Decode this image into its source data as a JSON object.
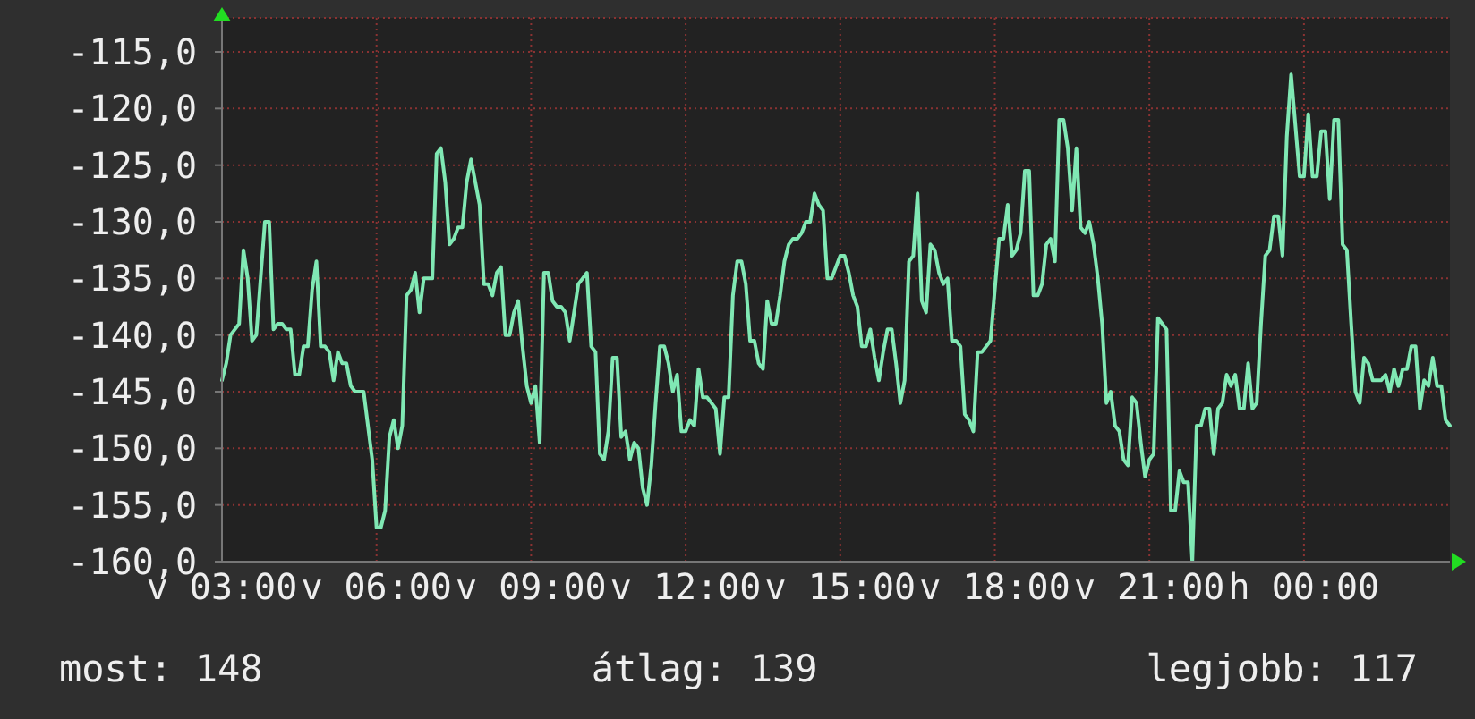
{
  "chart_data": {
    "type": "line",
    "color": "#80e8b4",
    "categories": [
      "v 03:00",
      null,
      null,
      null,
      null,
      null,
      null,
      null,
      null,
      null,
      null,
      null,
      null,
      null,
      null,
      null,
      null,
      null,
      null,
      null,
      null,
      null,
      null,
      null,
      null,
      null,
      null,
      null,
      null,
      null,
      null,
      null,
      null,
      null,
      null,
      null,
      "v 06:00",
      null,
      null,
      null,
      null,
      null,
      null,
      null,
      null,
      null,
      null,
      null,
      null,
      null,
      null,
      null,
      null,
      null,
      null,
      null,
      null,
      null,
      null,
      null,
      null,
      null,
      null,
      null,
      null,
      null,
      null,
      null,
      null,
      null,
      null,
      null,
      "v 09:00",
      null,
      null,
      null,
      null,
      null,
      null,
      null,
      null,
      null,
      null,
      null,
      null,
      null,
      null,
      null,
      null,
      null,
      null,
      null,
      null,
      null,
      null,
      null,
      null,
      null,
      null,
      null,
      null,
      null,
      null,
      null,
      null,
      null,
      null,
      null,
      "v 12:00",
      null,
      null,
      null,
      null,
      null,
      null,
      null,
      null,
      null,
      null,
      null,
      null,
      null,
      null,
      null,
      null,
      null,
      null,
      null,
      null,
      null,
      null,
      null,
      null,
      null,
      null,
      null,
      null,
      null,
      null,
      null,
      null,
      null,
      null,
      null,
      "v 15:00",
      null,
      null,
      null,
      null,
      null,
      null,
      null,
      null,
      null,
      null,
      null,
      null,
      null,
      null,
      null,
      null,
      null,
      null,
      null,
      null,
      null,
      null,
      null,
      null,
      null,
      null,
      null,
      null,
      null,
      null,
      null,
      null,
      null,
      null,
      null,
      "v 18:00",
      null,
      null,
      null,
      null,
      null,
      null,
      null,
      null,
      null,
      null,
      null,
      null,
      null,
      null,
      null,
      null,
      null,
      null,
      null,
      null,
      null,
      null,
      null,
      null,
      null,
      null,
      null,
      null,
      null,
      null,
      null,
      null,
      null,
      null,
      null,
      "v 21:00",
      null,
      null,
      null,
      null,
      null,
      null,
      null,
      null,
      null,
      null,
      null,
      null,
      null,
      null,
      null,
      null,
      null,
      null,
      null,
      null,
      null,
      null,
      null,
      null,
      null,
      null,
      null,
      null,
      null,
      null,
      null,
      null,
      null,
      null,
      null,
      "h 00:00",
      null,
      null,
      null,
      null,
      null,
      null,
      null,
      null,
      null,
      null,
      null,
      null,
      null,
      null,
      null,
      null,
      null,
      null,
      null,
      null,
      null,
      null,
      null,
      null,
      null,
      null,
      null,
      null,
      null,
      null,
      null,
      null,
      null,
      null
    ],
    "values": [
      -144,
      -142.5,
      -140,
      -139.5,
      -139,
      -132.5,
      -135,
      -140.5,
      -140,
      -135,
      -130,
      -130,
      -139.5,
      -139,
      -139,
      -139.5,
      -139.5,
      -143.5,
      -143.5,
      -141,
      -141,
      -136,
      -133.5,
      -141,
      -141,
      -141.5,
      -144,
      -141.5,
      -142.5,
      -142.5,
      -144.5,
      -145,
      -145,
      -145,
      -148,
      -151,
      -157,
      -157,
      -155.5,
      -149,
      -147.5,
      -150,
      -148,
      -136.5,
      -136,
      -134.5,
      -138,
      -135,
      -135,
      -135,
      -124,
      -123.5,
      -126.5,
      -132,
      -131.5,
      -130.5,
      -130.5,
      -126.5,
      -124.5,
      -126.5,
      -128.5,
      -135.5,
      -135.5,
      -136.5,
      -134.5,
      -134,
      -140,
      -140,
      -138,
      -137,
      -141,
      -144.5,
      -146,
      -144.5,
      -149.5,
      -134.5,
      -134.5,
      -137,
      -137.5,
      -137.5,
      -138,
      -140.5,
      -138,
      -135.5,
      -135,
      -134.5,
      -141,
      -141.5,
      -150.5,
      -151,
      -148.5,
      -142,
      -142,
      -149,
      -148.5,
      -151,
      -149.5,
      -150,
      -153.5,
      -155,
      -151.5,
      -146,
      -141,
      -141,
      -142.5,
      -145,
      -143.5,
      -148.5,
      -148.5,
      -147.5,
      -148,
      -143,
      -145.5,
      -145.5,
      -146,
      -146.5,
      -150.5,
      -145.5,
      -145.5,
      -136.5,
      -133.5,
      -133.5,
      -135.5,
      -140.5,
      -140.5,
      -142.5,
      -143,
      -137,
      -139,
      -139,
      -136.5,
      -133.5,
      -132,
      -131.5,
      -131.5,
      -131,
      -130,
      -130,
      -127.5,
      -128.5,
      -129,
      -135,
      -135,
      -134,
      -133,
      -133,
      -134.5,
      -136.5,
      -137.5,
      -141,
      -141,
      -139.5,
      -142,
      -144,
      -141.5,
      -139.5,
      -139.5,
      -142.5,
      -146,
      -144,
      -133.5,
      -133,
      -127.5,
      -137,
      -138,
      -132,
      -132.5,
      -134.5,
      -135.5,
      -135,
      -140.5,
      -140.5,
      -141,
      -147,
      -147.5,
      -148.5,
      -141.5,
      -141.5,
      -141,
      -140.5,
      -136,
      -131.5,
      -131.5,
      -128.5,
      -133,
      -132.5,
      -131,
      -125.5,
      -125.5,
      -136.5,
      -136.5,
      -135.5,
      -132,
      -131.5,
      -133.5,
      -121,
      -121,
      -123.5,
      -129,
      -123.5,
      -130.5,
      -131,
      -130,
      -132,
      -135,
      -139,
      -146,
      -145,
      -148,
      -148.5,
      -151,
      -151.5,
      -145.5,
      -146,
      -149.5,
      -152.5,
      -151,
      -150.5,
      -138.5,
      -139,
      -139.5,
      -155.5,
      -155.5,
      -152,
      -153,
      -153,
      -160,
      -148,
      -148,
      -146.5,
      -146.5,
      -150.5,
      -146.5,
      -146,
      -143.5,
      -144.5,
      -143.5,
      -146.5,
      -146.5,
      -142.5,
      -146.5,
      -146,
      -139,
      -133,
      -132.5,
      -129.5,
      -129.5,
      -133,
      -122.5,
      -117,
      -121.5,
      -126,
      -126,
      -120.5,
      -126,
      -126,
      -122,
      -122,
      -128,
      -121,
      -121,
      -132,
      -132.5,
      -139,
      -145,
      -146,
      -142,
      -142.5,
      -144,
      -144,
      -144,
      -143.5,
      -145,
      -143,
      -144.5,
      -143,
      -143,
      -141,
      -141,
      -146.5,
      -144,
      -144.5,
      -142,
      -144.5,
      -144.5,
      -147.5,
      -148
    ],
    "ylim": [
      -160,
      -112
    ],
    "yticks": [
      {
        "value": -160,
        "label": "-160,0"
      },
      {
        "value": -155,
        "label": "-155,0"
      },
      {
        "value": -150,
        "label": "-150,0"
      },
      {
        "value": -145,
        "label": "-145,0"
      },
      {
        "value": -140,
        "label": "-140,0"
      },
      {
        "value": -135,
        "label": "-135,0"
      },
      {
        "value": -130,
        "label": "-130,0"
      },
      {
        "value": -125,
        "label": "-125,0"
      },
      {
        "value": -120,
        "label": "-120,0"
      },
      {
        "value": -115,
        "label": "-115,0"
      }
    ],
    "grid": true,
    "annotations": [
      "most: 148",
      "átlag: 139",
      "legjobb: 117"
    ]
  }
}
